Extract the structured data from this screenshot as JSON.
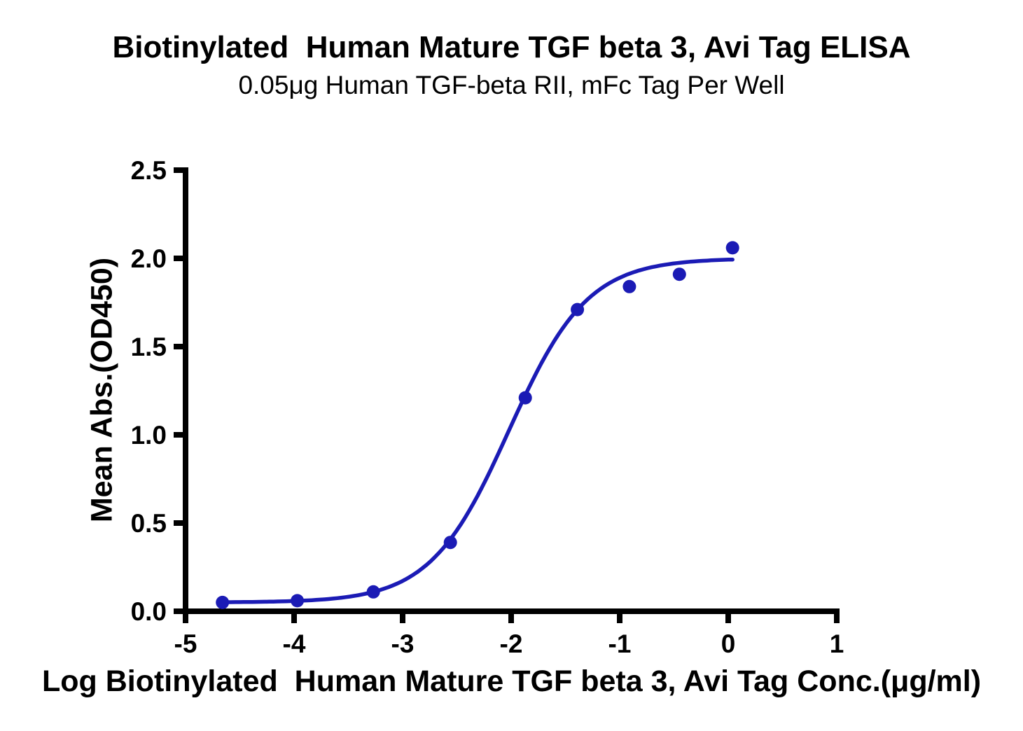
{
  "chart_data": {
    "type": "scatter",
    "title": "Biotinylated  Human Mature TGF beta 3, Avi Tag ELISA",
    "subtitle": "0.05μg Human TGF-beta RII, mFc Tag Per Well",
    "xlabel": "Log Biotinylated  Human Mature TGF beta 3, Avi Tag Conc.(μg/ml)",
    "ylabel": "Mean Abs.(OD450)",
    "xlim": [
      -5,
      1
    ],
    "ylim": [
      0,
      2.5
    ],
    "x_ticks": [
      -5,
      -4,
      -3,
      -2,
      -1,
      0,
      1
    ],
    "x_tick_labels": [
      "-5",
      "-4",
      "-3",
      "-2",
      "-1",
      "0",
      "1"
    ],
    "y_ticks": [
      0.0,
      0.5,
      1.0,
      1.5,
      2.0,
      2.5
    ],
    "y_tick_labels": [
      "0.0",
      "0.5",
      "1.0",
      "1.5",
      "2.0",
      "2.5"
    ],
    "grid": false,
    "legend": "none",
    "marker_color": "#1b1bb5",
    "curve_color": "#1b1bb5",
    "axis_color": "#000000",
    "points": [
      {
        "x": -4.66,
        "y": 0.05
      },
      {
        "x": -3.97,
        "y": 0.06
      },
      {
        "x": -3.27,
        "y": 0.11
      },
      {
        "x": -2.56,
        "y": 0.39
      },
      {
        "x": -1.87,
        "y": 1.21
      },
      {
        "x": -1.39,
        "y": 1.71
      },
      {
        "x": -0.91,
        "y": 1.84
      },
      {
        "x": -0.45,
        "y": 1.91
      },
      {
        "x": 0.04,
        "y": 2.06
      }
    ],
    "fit_curve": {
      "model": "4PL",
      "bottom": 0.05,
      "top": 2.0,
      "log_ec50": -2.02,
      "hill_slope": 1.2,
      "x_start": -4.66,
      "x_end": 0.04
    }
  }
}
